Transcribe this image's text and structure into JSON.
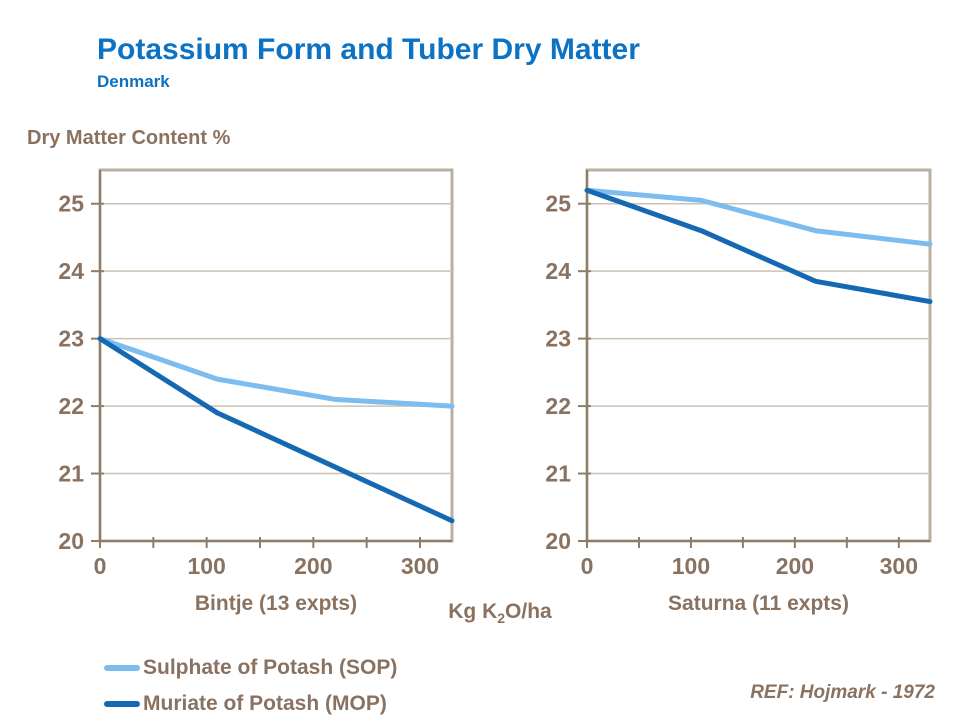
{
  "title": "Potassium Form and Tuber Dry Matter",
  "subtitle": "Denmark",
  "y_axis_title": "Dry Matter Content %",
  "x_axis_title": {
    "prefix": "Kg K",
    "sub": "2",
    "suffix": "O/ha"
  },
  "ref_note": "REF: Hojmark - 1972",
  "legend": [
    {
      "label": "Sulphate of Potash (SOP)",
      "color": "#7dbcee"
    },
    {
      "label": "Muriate of Potash (MOP)",
      "color": "#1569b3"
    }
  ],
  "colors": {
    "title_blue": "#0b72c4",
    "text_brown": "#8a7261",
    "frame_tan": "#bab0a2",
    "gridline_tan": "#ccc1b2",
    "axis_brown": "#8d7d69"
  },
  "chart_data": [
    {
      "type": "line",
      "title": "Bintje (13 expts)",
      "xlabel": "Kg K2O/ha",
      "ylabel": "Dry Matter Content %",
      "x": [
        0,
        110,
        220,
        330
      ],
      "series": [
        {
          "name": "Sulphate of Potash (SOP)",
          "values": [
            23.0,
            22.4,
            22.1,
            22.0
          ],
          "color": "#7dbcee"
        },
        {
          "name": "Muriate of Potash (MOP)",
          "values": [
            23.0,
            21.9,
            21.1,
            20.3
          ],
          "color": "#1569b3"
        }
      ],
      "xlim": [
        0,
        330
      ],
      "ylim": [
        20,
        25.5
      ],
      "yticks": [
        20,
        21,
        22,
        23,
        24,
        25
      ],
      "xticks": [
        0,
        100,
        200,
        300
      ],
      "xminor_step": 50,
      "grid": true,
      "legend_position": "bottom-left"
    },
    {
      "type": "line",
      "title": "Saturna (11 expts)",
      "xlabel": "Kg K2O/ha",
      "ylabel": "Dry Matter Content %",
      "x": [
        0,
        110,
        220,
        330
      ],
      "series": [
        {
          "name": "Sulphate of Potash (SOP)",
          "values": [
            25.2,
            25.05,
            24.6,
            24.4
          ],
          "color": "#7dbcee"
        },
        {
          "name": "Muriate of Potash (MOP)",
          "values": [
            25.2,
            24.6,
            23.85,
            23.55
          ],
          "color": "#1569b3"
        }
      ],
      "xlim": [
        0,
        330
      ],
      "ylim": [
        20,
        25.5
      ],
      "yticks": [
        20,
        21,
        22,
        23,
        24,
        25
      ],
      "xticks": [
        0,
        100,
        200,
        300
      ],
      "xminor_step": 50,
      "grid": true,
      "legend_position": "bottom-left"
    }
  ]
}
